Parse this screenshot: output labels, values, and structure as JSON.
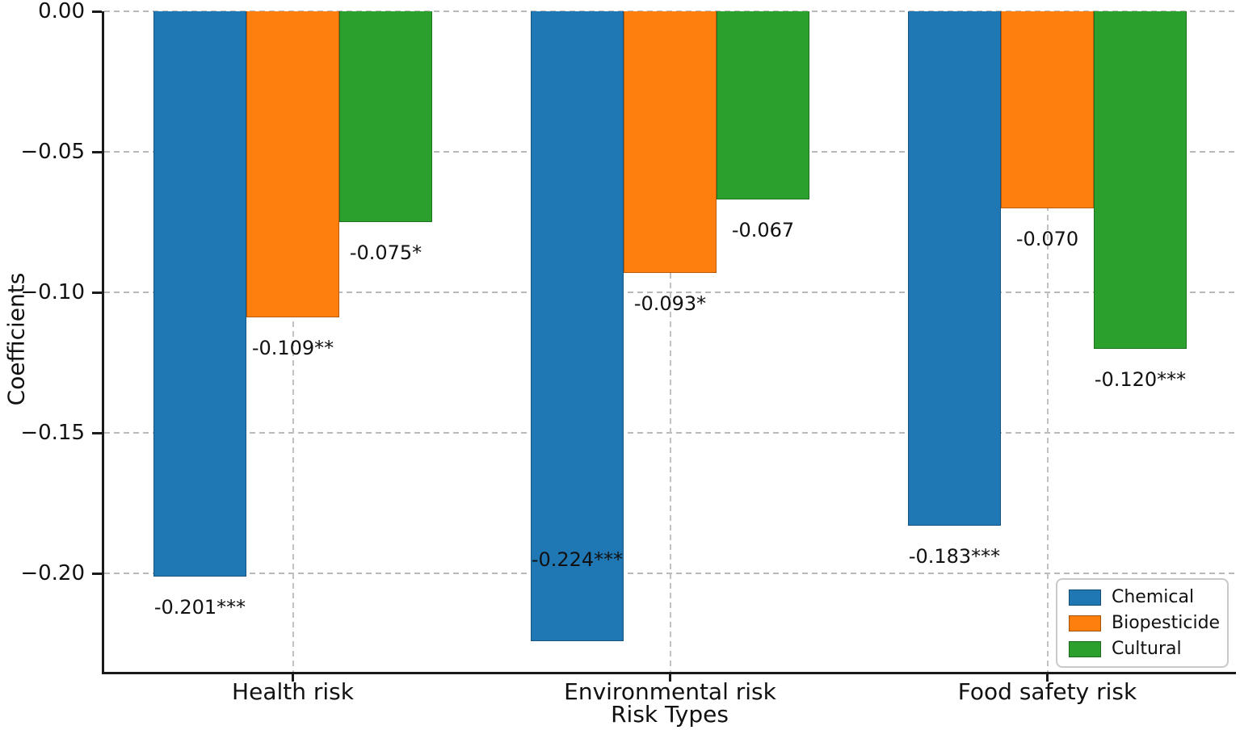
{
  "chart_data": {
    "type": "bar",
    "title": "",
    "xlabel": "Risk Types",
    "ylabel": "Coefficients",
    "categories": [
      "Health risk",
      "Environmental risk",
      "Food safety risk"
    ],
    "series": [
      {
        "name": "Chemical",
        "color": "#1f77b4",
        "values": [
          -0.201,
          -0.224,
          -0.183
        ],
        "value_labels": [
          "-0.201***",
          "-0.224***",
          "-0.183***"
        ]
      },
      {
        "name": "Biopesticide",
        "color": "#ff7f0e",
        "values": [
          -0.109,
          -0.093,
          -0.07
        ],
        "value_labels": [
          "-0.109**",
          "-0.093*",
          "-0.070"
        ]
      },
      {
        "name": "Cultural",
        "color": "#2ca02c",
        "values": [
          -0.075,
          -0.067,
          -0.12
        ],
        "value_labels": [
          "-0.075*",
          "-0.067",
          "-0.120***"
        ]
      }
    ],
    "ylim": [
      -0.235,
      0
    ],
    "yticks": [
      0.0,
      -0.05,
      -0.1,
      -0.15,
      -0.2
    ],
    "ytick_labels": [
      "0.00",
      "−0.05",
      "−0.10",
      "−0.15",
      "−0.20"
    ],
    "grid": true,
    "grid_style": "dashed",
    "legend_position": "lower right",
    "legend_entries": [
      "Chemical",
      "Biopesticide",
      "Cultural"
    ]
  },
  "colors": {
    "chemical": "#1f77b4",
    "biopesticide": "#ff7f0e",
    "cultural": "#2ca02c",
    "grid": "#b9b9b9",
    "spine": "#1a1a1a",
    "text": "#111111"
  }
}
